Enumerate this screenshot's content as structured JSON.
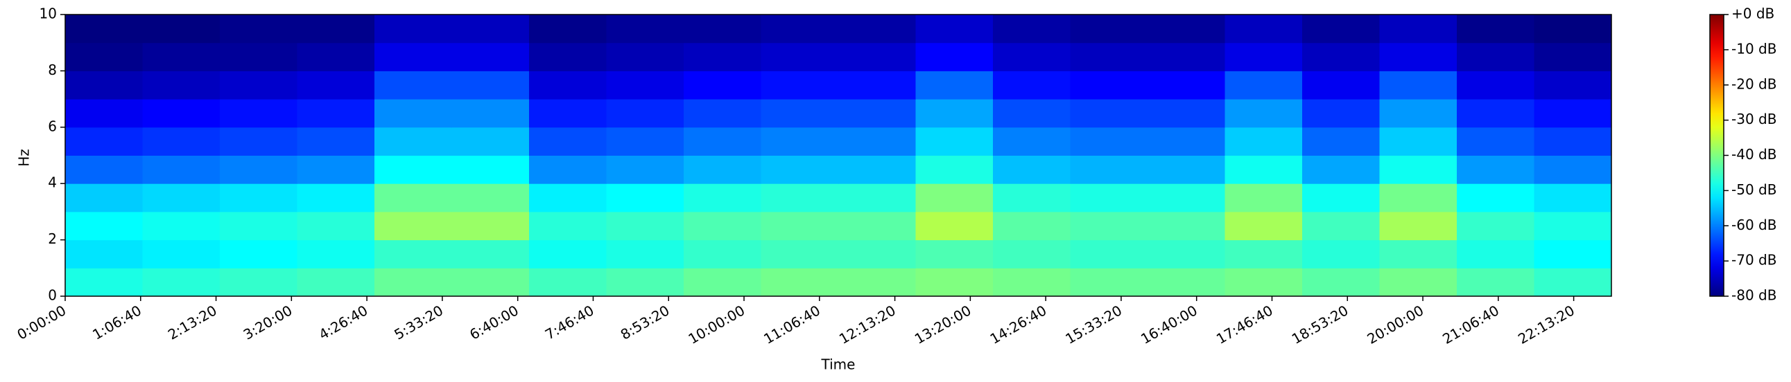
{
  "chart_data": {
    "type": "heatmap",
    "xlabel": "Time",
    "ylabel": "Hz",
    "xbins": [
      0,
      4100,
      8200,
      12300,
      16400,
      20500,
      24600,
      28700,
      32800,
      36900,
      41000,
      45100,
      49200,
      53300,
      57400,
      61500,
      65600,
      69700,
      73800,
      77900,
      82000
    ],
    "ybins": [
      0,
      1,
      2,
      3,
      4,
      5,
      6,
      7,
      8,
      9,
      10
    ],
    "values": [
      [
        -48,
        -47,
        -46,
        -45,
        -42,
        -42,
        -45,
        -44,
        -42,
        -41,
        -41,
        -40,
        -41,
        -42,
        -42,
        -41,
        -43,
        -41,
        -44,
        -46
      ],
      [
        -52,
        -51,
        -50,
        -49,
        -46,
        -46,
        -49,
        -48,
        -46,
        -45,
        -45,
        -44,
        -45,
        -46,
        -46,
        -45,
        -47,
        -45,
        -48,
        -50
      ],
      [
        -50,
        -49,
        -48,
        -47,
        -38,
        -38,
        -47,
        -46,
        -44,
        -43,
        -43,
        -36,
        -43,
        -44,
        -44,
        -37,
        -45,
        -37,
        -46,
        -48
      ],
      [
        -54,
        -53,
        -52,
        -51,
        -42,
        -42,
        -51,
        -50,
        -48,
        -47,
        -47,
        -40,
        -47,
        -48,
        -48,
        -41,
        -49,
        -41,
        -50,
        -52
      ],
      [
        -62,
        -61,
        -60,
        -59,
        -50,
        -50,
        -59,
        -58,
        -56,
        -55,
        -55,
        -48,
        -55,
        -56,
        -56,
        -49,
        -57,
        -49,
        -58,
        -60
      ],
      [
        -67,
        -66,
        -65,
        -64,
        -55,
        -55,
        -64,
        -63,
        -61,
        -60,
        -60,
        -53,
        -60,
        -61,
        -61,
        -54,
        -62,
        -54,
        -63,
        -65
      ],
      [
        -71,
        -70,
        -69,
        -68,
        -59,
        -59,
        -68,
        -67,
        -65,
        -64,
        -64,
        -57,
        -64,
        -65,
        -65,
        -58,
        -66,
        -58,
        -67,
        -69
      ],
      [
        -76,
        -75,
        -74,
        -73,
        -64,
        -64,
        -73,
        -72,
        -70,
        -69,
        -69,
        -62,
        -69,
        -70,
        -70,
        -63,
        -71,
        -63,
        -72,
        -74
      ],
      [
        -79,
        -78,
        -78,
        -77,
        -72,
        -72,
        -77,
        -76,
        -75,
        -74,
        -74,
        -70,
        -74,
        -75,
        -75,
        -72,
        -75,
        -72,
        -76,
        -78
      ],
      [
        -80,
        -80,
        -79,
        -79,
        -75,
        -75,
        -79,
        -78,
        -78,
        -77,
        -77,
        -74,
        -77,
        -78,
        -78,
        -75,
        -78,
        -75,
        -79,
        -80
      ]
    ],
    "colormap": "jet",
    "xlim": [
      0,
      82000
    ],
    "ylim": [
      0,
      10
    ],
    "clim": [
      -80,
      0
    ],
    "xticks": [
      {
        "value": 0,
        "label": "0:00:00"
      },
      {
        "value": 4000,
        "label": "1:06:40"
      },
      {
        "value": 8000,
        "label": "2:13:20"
      },
      {
        "value": 12000,
        "label": "3:20:00"
      },
      {
        "value": 16000,
        "label": "4:26:40"
      },
      {
        "value": 20000,
        "label": "5:33:20"
      },
      {
        "value": 24000,
        "label": "6:40:00"
      },
      {
        "value": 28000,
        "label": "7:46:40"
      },
      {
        "value": 32000,
        "label": "8:53:20"
      },
      {
        "value": 36000,
        "label": "10:00:00"
      },
      {
        "value": 40000,
        "label": "11:06:40"
      },
      {
        "value": 44000,
        "label": "12:13:20"
      },
      {
        "value": 48000,
        "label": "13:20:00"
      },
      {
        "value": 52000,
        "label": "14:26:40"
      },
      {
        "value": 56000,
        "label": "15:33:20"
      },
      {
        "value": 60000,
        "label": "16:40:00"
      },
      {
        "value": 64000,
        "label": "17:46:40"
      },
      {
        "value": 68000,
        "label": "18:53:20"
      },
      {
        "value": 72000,
        "label": "20:00:00"
      },
      {
        "value": 76000,
        "label": "21:06:40"
      },
      {
        "value": 80000,
        "label": "22:13:20"
      }
    ],
    "yticks": [
      0,
      2,
      4,
      6,
      8,
      10
    ],
    "cticks": [
      {
        "value": 0,
        "label": "+0 dB"
      },
      {
        "value": -10,
        "label": "-10 dB"
      },
      {
        "value": -20,
        "label": "-20 dB"
      },
      {
        "value": -30,
        "label": "-30 dB"
      },
      {
        "value": -40,
        "label": "-40 dB"
      },
      {
        "value": -50,
        "label": "-50 dB"
      },
      {
        "value": -60,
        "label": "-60 dB"
      },
      {
        "value": -70,
        "label": "-70 dB"
      },
      {
        "value": -80,
        "label": "-80 dB"
      }
    ]
  }
}
